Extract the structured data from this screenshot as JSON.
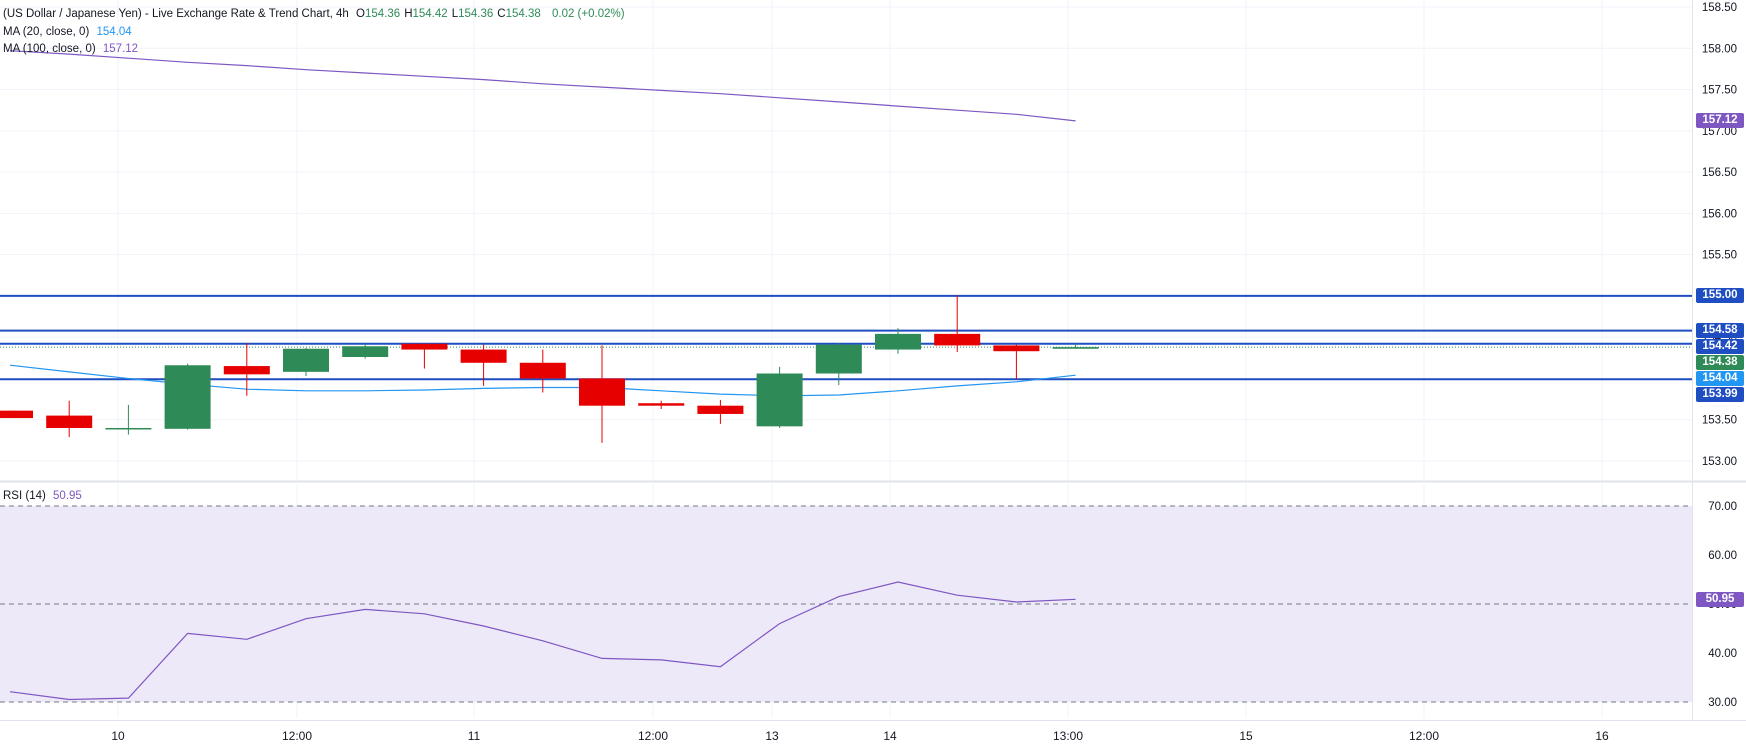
{
  "header": {
    "symbol_title": "(US Dollar / Japanese Yen) - Live Exchange Rate & Trend Chart, 4h",
    "ohlc": [
      {
        "label": "O",
        "value": "154.36"
      },
      {
        "label": "H",
        "value": "154.42"
      },
      {
        "label": "L",
        "value": "154.36"
      },
      {
        "label": "C",
        "value": "154.38"
      }
    ],
    "change": "0.02 (+0.02%)",
    "ma20_label": "MA (20, close, 0)",
    "ma20_value": "154.04",
    "ma100_label": "MA (100, close, 0)",
    "ma100_value": "157.12",
    "rsi_label": "RSI (14)",
    "rsi_value": "50.95"
  },
  "colors": {
    "up": "#2e8b57",
    "down": "#e60000",
    "ma20": "#2196f3",
    "ma100": "#7e57c2",
    "hline": "#1f4ec2",
    "rsi": "#7e57c2",
    "rsi_band": "#ede9f8",
    "grid": "#f0f3fa",
    "axis_text": "#131722"
  },
  "chart_data": [
    {
      "type": "candlestick",
      "timeframe": "4h",
      "y_ticks": [
        "158.50",
        "158.00",
        "157.50",
        "157.00",
        "156.50",
        "156.00",
        "155.50",
        "155.00",
        "154.50",
        "154.00",
        "153.50",
        "153.00"
      ],
      "ylim": [
        152.8,
        158.5
      ],
      "x_ticks": [
        "10",
        "12:00",
        "11",
        "12:00",
        "13",
        "14",
        "13:00",
        "15",
        "12:00",
        "16"
      ],
      "candles": [
        {
          "o": 153.61,
          "h": 153.61,
          "l": 153.52,
          "c": 153.52
        },
        {
          "o": 153.55,
          "h": 153.73,
          "l": 153.29,
          "c": 153.4
        },
        {
          "o": 153.4,
          "h": 153.68,
          "l": 153.32,
          "c": 153.4
        },
        {
          "o": 153.39,
          "h": 154.18,
          "l": 153.38,
          "c": 154.16
        },
        {
          "o": 154.15,
          "h": 154.43,
          "l": 153.79,
          "c": 154.05
        },
        {
          "o": 154.08,
          "h": 154.37,
          "l": 154.03,
          "c": 154.36
        },
        {
          "o": 154.26,
          "h": 154.42,
          "l": 154.24,
          "c": 154.39
        },
        {
          "o": 154.42,
          "h": 154.42,
          "l": 154.12,
          "c": 154.35
        },
        {
          "o": 154.35,
          "h": 154.41,
          "l": 153.91,
          "c": 154.19
        },
        {
          "o": 154.19,
          "h": 154.35,
          "l": 153.83,
          "c": 154.0
        },
        {
          "o": 154.0,
          "h": 154.4,
          "l": 153.22,
          "c": 153.67
        },
        {
          "o": 153.7,
          "h": 153.73,
          "l": 153.63,
          "c": 153.67
        },
        {
          "o": 153.67,
          "h": 153.74,
          "l": 153.45,
          "c": 153.57
        },
        {
          "o": 153.42,
          "h": 154.14,
          "l": 153.4,
          "c": 154.06
        },
        {
          "o": 154.06,
          "h": 154.43,
          "l": 153.92,
          "c": 154.41
        },
        {
          "o": 154.35,
          "h": 154.61,
          "l": 154.3,
          "c": 154.54
        },
        {
          "o": 154.54,
          "h": 155.01,
          "l": 154.32,
          "c": 154.4
        },
        {
          "o": 154.4,
          "h": 154.41,
          "l": 153.99,
          "c": 154.33
        },
        {
          "o": 154.36,
          "h": 154.42,
          "l": 154.36,
          "c": 154.38
        }
      ],
      "ma20": [
        154.16,
        154.08,
        154.0,
        153.93,
        153.87,
        153.85,
        153.85,
        153.86,
        153.88,
        153.89,
        153.89,
        153.85,
        153.81,
        153.79,
        153.8,
        153.85,
        153.91,
        153.96,
        154.04
      ],
      "ma100": [
        157.97,
        157.93,
        157.88,
        157.83,
        157.79,
        157.74,
        157.7,
        157.66,
        157.62,
        157.57,
        157.53,
        157.49,
        157.45,
        157.4,
        157.35,
        157.3,
        157.25,
        157.2,
        157.12
      ],
      "horizontal_levels": [
        "155.00",
        "154.58",
        "154.42",
        "153.99"
      ],
      "price_tags": [
        {
          "label": "157.12",
          "value": 157.12,
          "color": "#7e57c2"
        },
        {
          "label": "155.00",
          "value": 155.0,
          "color": "#1f4ec2"
        },
        {
          "label": "154.58",
          "value": 154.58,
          "color": "#1f4ec2"
        },
        {
          "label": "154.42",
          "value": 154.42,
          "color": "#1f4ec2"
        },
        {
          "label": "154.38",
          "value": 154.38,
          "color": "#2e8b57"
        },
        {
          "label": "154.04",
          "value": 154.04,
          "color": "#2196f3"
        },
        {
          "label": "153.99",
          "value": 153.99,
          "color": "#1f4ec2"
        }
      ]
    },
    {
      "type": "line",
      "name": "RSI (14)",
      "y_ticks": [
        "70.00",
        "60.00",
        "50.00",
        "40.00",
        "30.00"
      ],
      "ylim": [
        26,
        72
      ],
      "band": [
        30,
        70
      ],
      "midline": 50,
      "values": [
        32.1,
        30.5,
        30.8,
        44.0,
        42.8,
        47.0,
        48.9,
        48.0,
        45.5,
        42.5,
        38.9,
        38.6,
        37.2,
        46.0,
        51.5,
        54.5,
        51.8,
        50.4,
        50.95
      ],
      "last_tag": "50.95"
    }
  ]
}
